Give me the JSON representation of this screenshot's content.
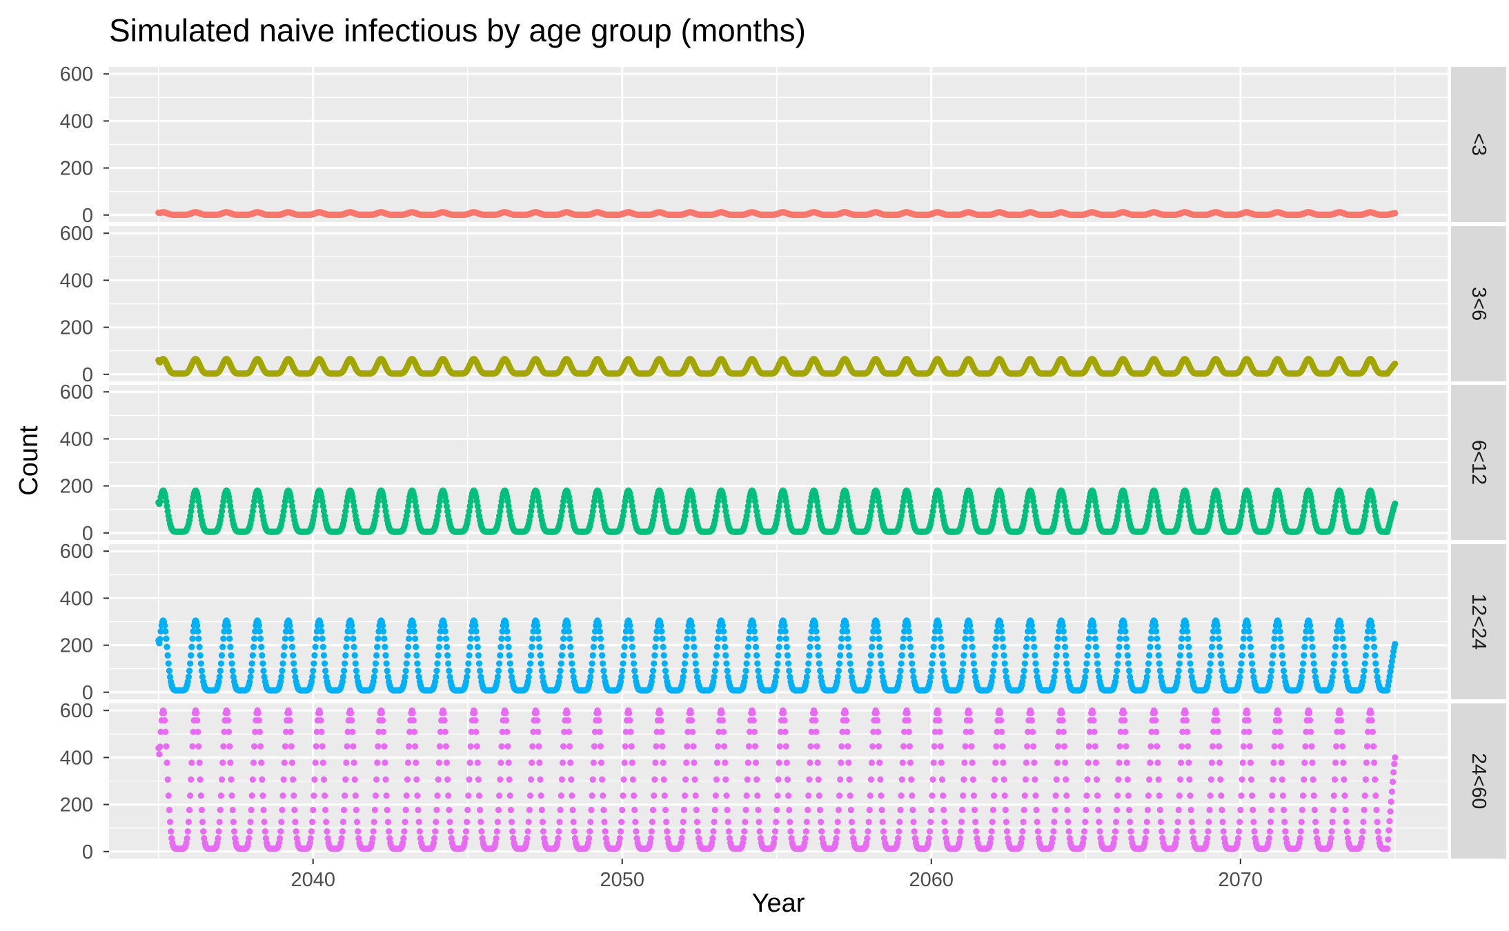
{
  "chart_data": {
    "type": "scatter",
    "title": "Simulated naive infectious by age group (months)",
    "xlabel": "Year",
    "ylabel": "Count",
    "xlim": [
      2033.4,
      2076.7
    ],
    "ylim": [
      -30,
      630
    ],
    "x_ticks": [
      2040,
      2050,
      2060,
      2070
    ],
    "x_tick_labels": [
      "2040",
      "2050",
      "2060",
      "2070"
    ],
    "y_ticks": [
      0,
      200,
      400,
      600
    ],
    "y_tick_labels": [
      "0",
      "200",
      "400",
      "600"
    ],
    "x_start": 2035.0,
    "x_end": 2075.0,
    "peak_years": [
      2035.15,
      2036.2,
      2037.2,
      2038.2,
      2039.2,
      2040.2,
      2041.2,
      2042.2,
      2043.2,
      2044.2,
      2045.2,
      2046.2,
      2047.2,
      2048.2,
      2049.2,
      2050.2,
      2051.2,
      2052.2,
      2053.2,
      2054.2,
      2055.2,
      2056.2,
      2057.2,
      2058.2,
      2059.2,
      2060.2,
      2061.2,
      2062.2,
      2063.2,
      2064.2,
      2065.2,
      2066.2,
      2067.2,
      2068.2,
      2069.2,
      2070.2,
      2071.2,
      2072.2,
      2073.2,
      2074.2
    ],
    "grid": true,
    "legend": "none",
    "facet_strip_position": "right",
    "series": [
      {
        "name": "<3",
        "color": "#F8766D",
        "peak": 12,
        "trough": 1,
        "start_value": 10,
        "end_value": 8
      },
      {
        "name": "3<6",
        "color": "#A3A500",
        "peak": 65,
        "trough": 3,
        "start_value": 60,
        "end_value": 45
      },
      {
        "name": "6<12",
        "color": "#00BF7D",
        "peak": 180,
        "trough": 5,
        "start_value": 130,
        "end_value": 125
      },
      {
        "name": "12<24",
        "color": "#00B0F6",
        "peak": 305,
        "trough": 8,
        "start_value": 220,
        "end_value": 205
      },
      {
        "name": "24<60",
        "color": "#E76BF3",
        "peak": 600,
        "trough": 12,
        "start_value": 440,
        "end_value": 400
      }
    ]
  }
}
